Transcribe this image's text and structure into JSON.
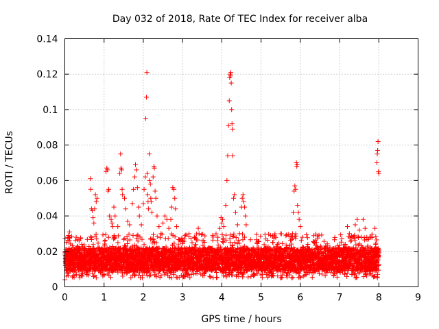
{
  "chart_data": {
    "type": "scatter",
    "title": "Day 032 of 2018, Rate Of TEC Index for receiver alba",
    "xlabel": "GPS time / hours",
    "ylabel": "ROTI / TECUs",
    "xlim": [
      0,
      9
    ],
    "ylim": [
      0,
      0.14
    ],
    "xticks": [
      "0",
      "1",
      "2",
      "3",
      "4",
      "5",
      "6",
      "7",
      "8",
      "9"
    ],
    "yticks": [
      "0",
      "0.02",
      "0.04",
      "0.06",
      "0.08",
      "0.1",
      "0.12",
      "0.14"
    ],
    "grid": true,
    "marker": "+",
    "color": "#ff0000",
    "series": [
      {
        "name": "ROTI",
        "baseline": {
          "x_start": 0.0,
          "x_end": 8.0,
          "x_step": 0.005,
          "y_typical_min": 0.005,
          "y_typical_max": 0.03
        },
        "points": [
          [
            0.0,
            0.004
          ],
          [
            0.02,
            0.012
          ],
          [
            0.05,
            0.02
          ],
          [
            0.08,
            0.026
          ],
          [
            0.12,
            0.031
          ],
          [
            0.65,
            0.061
          ],
          [
            0.66,
            0.055
          ],
          [
            0.68,
            0.044
          ],
          [
            0.7,
            0.043
          ],
          [
            0.72,
            0.039
          ],
          [
            0.74,
            0.036
          ],
          [
            0.76,
            0.044
          ],
          [
            0.78,
            0.052
          ],
          [
            0.8,
            0.048
          ],
          [
            0.82,
            0.05
          ],
          [
            1.05,
            0.065
          ],
          [
            1.07,
            0.067
          ],
          [
            1.09,
            0.066
          ],
          [
            1.1,
            0.054
          ],
          [
            1.12,
            0.055
          ],
          [
            1.14,
            0.04
          ],
          [
            1.18,
            0.038
          ],
          [
            1.2,
            0.036
          ],
          [
            1.22,
            0.034
          ],
          [
            1.25,
            0.045
          ],
          [
            1.28,
            0.04
          ],
          [
            1.35,
            0.034
          ],
          [
            1.4,
            0.064
          ],
          [
            1.42,
            0.075
          ],
          [
            1.43,
            0.067
          ],
          [
            1.45,
            0.066
          ],
          [
            1.46,
            0.055
          ],
          [
            1.47,
            0.052
          ],
          [
            1.52,
            0.05
          ],
          [
            1.55,
            0.044
          ],
          [
            1.6,
            0.037
          ],
          [
            1.65,
            0.035
          ],
          [
            1.72,
            0.047
          ],
          [
            1.75,
            0.055
          ],
          [
            1.78,
            0.062
          ],
          [
            1.8,
            0.069
          ],
          [
            1.82,
            0.066
          ],
          [
            1.85,
            0.056
          ],
          [
            1.88,
            0.045
          ],
          [
            1.9,
            0.04
          ],
          [
            1.95,
            0.035
          ],
          [
            2.0,
            0.047
          ],
          [
            2.02,
            0.055
          ],
          [
            2.05,
            0.062
          ],
          [
            2.06,
            0.095
          ],
          [
            2.08,
            0.107
          ],
          [
            2.09,
            0.121
          ],
          [
            2.1,
            0.064
          ],
          [
            2.11,
            0.052
          ],
          [
            2.12,
            0.048
          ],
          [
            2.13,
            0.044
          ],
          [
            2.15,
            0.075
          ],
          [
            2.16,
            0.06
          ],
          [
            2.18,
            0.058
          ],
          [
            2.19,
            0.05
          ],
          [
            2.2,
            0.048
          ],
          [
            2.22,
            0.042
          ],
          [
            2.25,
            0.062
          ],
          [
            2.27,
            0.068
          ],
          [
            2.28,
            0.067
          ],
          [
            2.3,
            0.054
          ],
          [
            2.32,
            0.05
          ],
          [
            2.35,
            0.04
          ],
          [
            2.4,
            0.034
          ],
          [
            2.45,
            0.03
          ],
          [
            2.5,
            0.036
          ],
          [
            2.55,
            0.04
          ],
          [
            2.6,
            0.038
          ],
          [
            2.65,
            0.033
          ],
          [
            2.7,
            0.038
          ],
          [
            2.72,
            0.045
          ],
          [
            2.75,
            0.056
          ],
          [
            2.78,
            0.055
          ],
          [
            2.8,
            0.05
          ],
          [
            2.82,
            0.044
          ],
          [
            2.85,
            0.034
          ],
          [
            3.3,
            0.028
          ],
          [
            3.4,
            0.033
          ],
          [
            3.42,
            0.03
          ],
          [
            3.5,
            0.026
          ],
          [
            3.9,
            0.028
          ],
          [
            3.95,
            0.033
          ],
          [
            3.98,
            0.039
          ],
          [
            4.0,
            0.036
          ],
          [
            4.02,
            0.038
          ],
          [
            4.05,
            0.034
          ],
          [
            4.1,
            0.046
          ],
          [
            4.13,
            0.06
          ],
          [
            4.15,
            0.074
          ],
          [
            4.17,
            0.091
          ],
          [
            4.19,
            0.105
          ],
          [
            4.2,
            0.118
          ],
          [
            4.21,
            0.12
          ],
          [
            4.22,
            0.119
          ],
          [
            4.23,
            0.121
          ],
          [
            4.24,
            0.115
          ],
          [
            4.25,
            0.1
          ],
          [
            4.26,
            0.092
          ],
          [
            4.27,
            0.089
          ],
          [
            4.28,
            0.074
          ],
          [
            4.3,
            0.05
          ],
          [
            4.32,
            0.052
          ],
          [
            4.35,
            0.042
          ],
          [
            4.4,
            0.035
          ],
          [
            4.45,
            0.03
          ],
          [
            4.5,
            0.045
          ],
          [
            4.52,
            0.05
          ],
          [
            4.54,
            0.052
          ],
          [
            4.56,
            0.048
          ],
          [
            4.58,
            0.045
          ],
          [
            4.6,
            0.04
          ],
          [
            4.62,
            0.035
          ],
          [
            5.8,
            0.03
          ],
          [
            5.82,
            0.042
          ],
          [
            5.84,
            0.054
          ],
          [
            5.86,
            0.057
          ],
          [
            5.88,
            0.055
          ],
          [
            5.9,
            0.07
          ],
          [
            5.91,
            0.068
          ],
          [
            5.92,
            0.069
          ],
          [
            5.93,
            0.046
          ],
          [
            5.95,
            0.042
          ],
          [
            5.97,
            0.038
          ],
          [
            6.0,
            0.034
          ],
          [
            6.05,
            0.028
          ],
          [
            7.2,
            0.034
          ],
          [
            7.25,
            0.03
          ],
          [
            7.3,
            0.026
          ],
          [
            7.4,
            0.035
          ],
          [
            7.45,
            0.038
          ],
          [
            7.5,
            0.032
          ],
          [
            7.55,
            0.028
          ],
          [
            7.6,
            0.038
          ],
          [
            7.65,
            0.033
          ],
          [
            7.8,
            0.028
          ],
          [
            7.9,
            0.033
          ],
          [
            7.95,
            0.07
          ],
          [
            7.96,
            0.075
          ],
          [
            7.97,
            0.077
          ],
          [
            7.98,
            0.082
          ],
          [
            7.99,
            0.065
          ],
          [
            8.0,
            0.064
          ]
        ]
      }
    ]
  }
}
